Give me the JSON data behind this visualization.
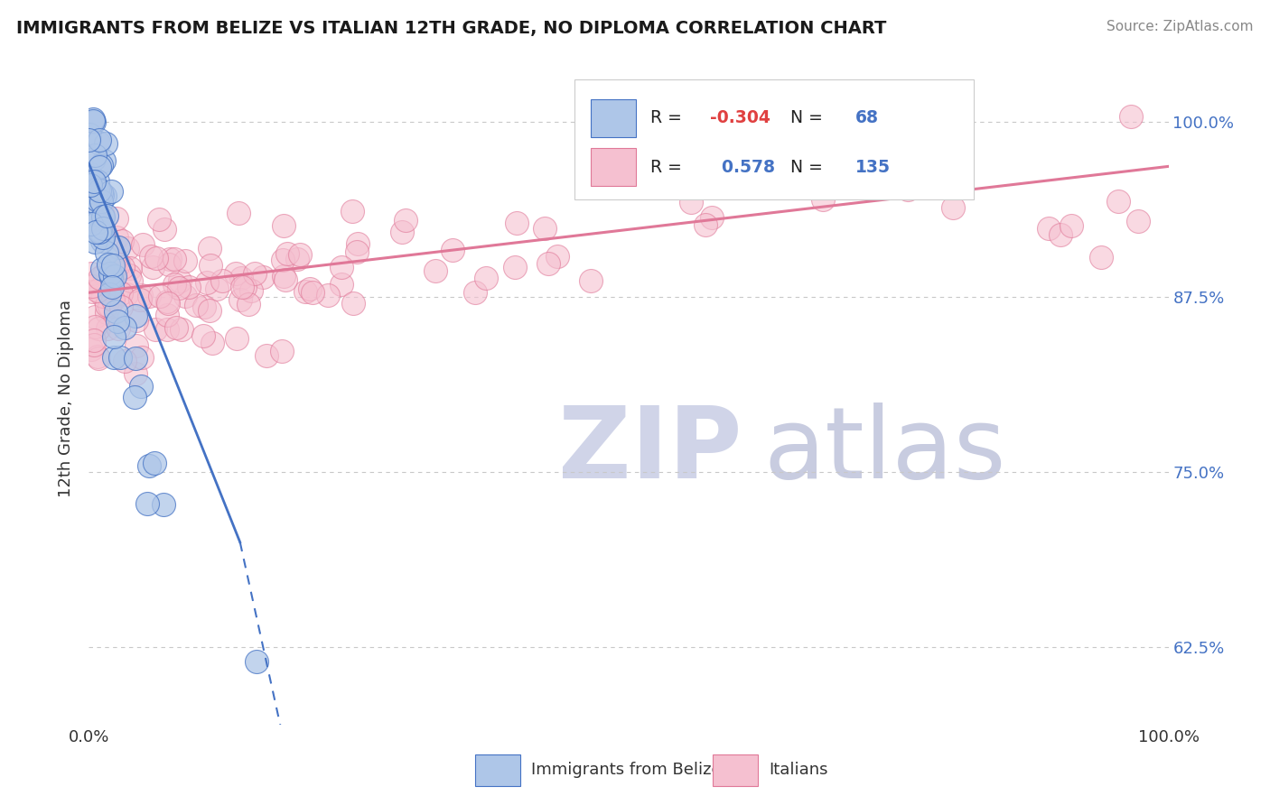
{
  "title": "IMMIGRANTS FROM BELIZE VS ITALIAN 12TH GRADE, NO DIPLOMA CORRELATION CHART",
  "source_text": "Source: ZipAtlas.com",
  "ylabel": "12th Grade, No Diploma",
  "watermark_zip": "ZIP",
  "watermark_atlas": "atlas",
  "legend_labels": [
    "Immigrants from Belize",
    "Italians"
  ],
  "r_belize": -0.304,
  "n_belize": 68,
  "r_italian": 0.578,
  "n_italian": 135,
  "blue_fill": "#aec6e8",
  "blue_edge": "#4472c4",
  "pink_fill": "#f5c0d0",
  "pink_edge": "#e07898",
  "pink_line": "#e07898",
  "blue_line": "#4472c4",
  "background_color": "#ffffff",
  "grid_color": "#c8c8c8",
  "x_min": 0.0,
  "x_max": 1.0,
  "y_min": 0.57,
  "y_max": 1.035,
  "yticks": [
    0.625,
    0.75,
    0.875,
    1.0
  ],
  "ytick_labels": [
    "62.5%",
    "75.0%",
    "87.5%",
    "100.0%"
  ],
  "right_tick_color": "#4472c4",
  "title_color": "#1a1a1a",
  "source_color": "#888888",
  "legend_r_color": "#e04040",
  "legend_n_color": "#4472c4"
}
